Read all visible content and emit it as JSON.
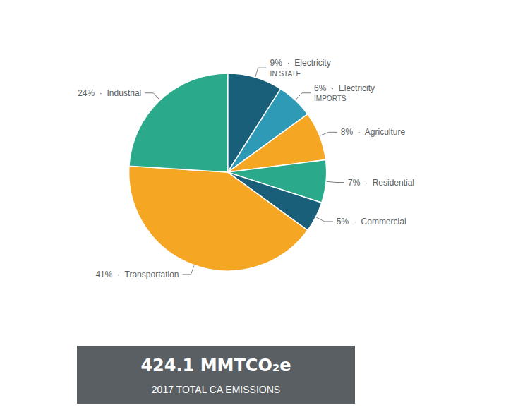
{
  "chart_data": {
    "type": "pie",
    "values": [
      9,
      6,
      8,
      7,
      5,
      41,
      24
    ],
    "value_labels": [
      "9%  ·  Electricity\nIN STATE",
      "6%  ·  Electricity\nIMPORTS",
      "8%  ·  Agriculture",
      "7%  ·  Residential",
      "5%  ·  Commercial",
      "41%  ·  Transportation",
      "24%  ·  Industrial"
    ],
    "colors": [
      "#1a5f7a",
      "#2e9ab5",
      "#f5a623",
      "#2aaa8a",
      "#1a5f7a",
      "#f5a623",
      "#2aaa8a"
    ],
    "color": "#5a5f63",
    "data_labels": true,
    "legend": false,
    "annotations": [
      "424.1 MMTCO₂e",
      "2017 TOTAL CA EMISSIONS"
    ]
  }
}
